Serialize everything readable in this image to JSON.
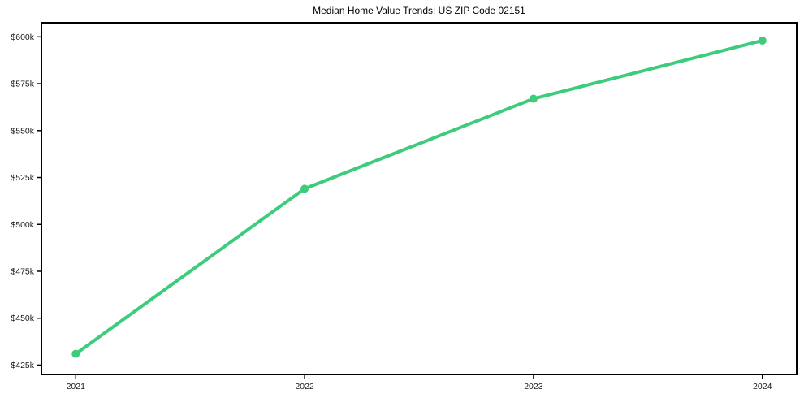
{
  "chart_data": {
    "type": "line",
    "title": "Median Home Value Trends: US ZIP Code 02151",
    "xlabel": "",
    "ylabel": "",
    "x": [
      2021,
      2022,
      2023,
      2024
    ],
    "series": [
      {
        "name": "Median Home Value",
        "values": [
          431000,
          519000,
          567000,
          598000
        ]
      }
    ],
    "xticks": [
      2021,
      2022,
      2023,
      2024
    ],
    "xtick_labels": [
      "2021",
      "2022",
      "2023",
      "2024"
    ],
    "yticks": [
      425000,
      450000,
      475000,
      500000,
      525000,
      550000,
      575000,
      600000
    ],
    "ytick_labels": [
      "$425k",
      "$450k",
      "$475k",
      "$500k",
      "$525k",
      "$550k",
      "$575k",
      "$600k"
    ],
    "xlim": [
      2020.85,
      2024.15
    ],
    "ylim": [
      420000,
      607500
    ],
    "grid": false,
    "legend": false,
    "line_color": "#3dcb7c",
    "line_width": 4,
    "marker": "circle",
    "marker_size": 10,
    "spine_color": "#000000",
    "tick_label_color": "#1a1a1a",
    "background_color": "#ffffff"
  }
}
